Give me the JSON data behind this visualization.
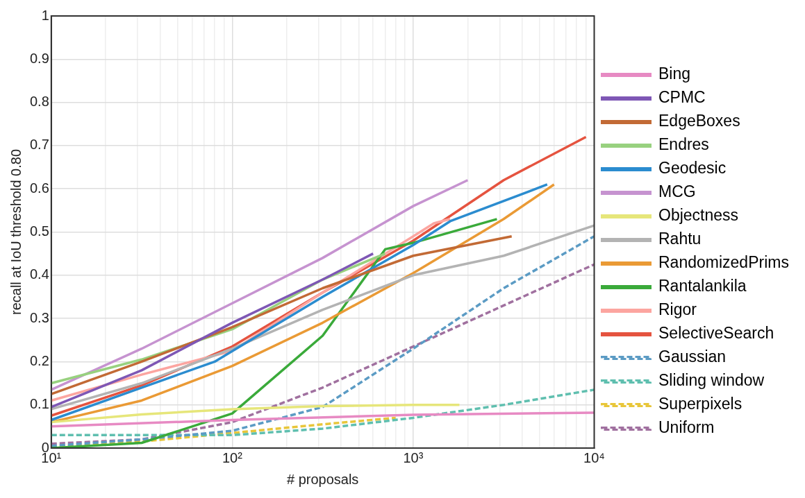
{
  "chart_data": {
    "type": "line",
    "xlabel": "# proposals",
    "ylabel": "recall at IoU threshold 0.80",
    "log": "x",
    "grid": true,
    "legend": "right",
    "marker": "none",
    "xlim": [
      10,
      10000
    ],
    "xticks": [
      {
        "value": 10,
        "label": "10¹"
      },
      {
        "value": 20,
        "label": null
      },
      {
        "value": 30,
        "label": null
      },
      {
        "value": 40,
        "label": null
      },
      {
        "value": 50,
        "label": null
      },
      {
        "value": 60,
        "label": null
      },
      {
        "value": 70,
        "label": null
      },
      {
        "value": 80,
        "label": null
      },
      {
        "value": 90,
        "label": null
      },
      {
        "value": 100,
        "label": "10²"
      },
      {
        "value": 200,
        "label": null
      },
      {
        "value": 300,
        "label": null
      },
      {
        "value": 400,
        "label": null
      },
      {
        "value": 500,
        "label": null
      },
      {
        "value": 600,
        "label": null
      },
      {
        "value": 700,
        "label": null
      },
      {
        "value": 800,
        "label": null
      },
      {
        "value": 900,
        "label": null
      },
      {
        "value": 1000,
        "label": "10³"
      },
      {
        "value": 2000,
        "label": null
      },
      {
        "value": 3000,
        "label": null
      },
      {
        "value": 4000,
        "label": null
      },
      {
        "value": 5000,
        "label": null
      },
      {
        "value": 6000,
        "label": null
      },
      {
        "value": 7000,
        "label": null
      },
      {
        "value": 8000,
        "label": null
      },
      {
        "value": 9000,
        "label": null
      },
      {
        "value": 10000,
        "label": "10⁴"
      }
    ],
    "ylim": [
      0,
      1
    ],
    "yticks": [
      0,
      0.1,
      0.2,
      0.3,
      0.4,
      0.5,
      0.6,
      0.7,
      0.8,
      0.9,
      1
    ],
    "series": [
      {
        "name": "Bing",
        "color": "#e78ac3",
        "line_style": "solid",
        "x": [
          10,
          100,
          1000,
          10000
        ],
        "values": [
          0.05,
          0.065,
          0.077,
          0.082
        ]
      },
      {
        "name": "CPMC",
        "color": "#7e57b5",
        "line_style": "solid",
        "x": [
          10,
          31.6,
          100,
          316,
          600
        ],
        "values": [
          0.095,
          0.18,
          0.29,
          0.39,
          0.45
        ]
      },
      {
        "name": "EdgeBoxes",
        "color": "#c26a35",
        "line_style": "solid",
        "x": [
          10,
          31.6,
          100,
          316,
          1000,
          3500
        ],
        "values": [
          0.125,
          0.2,
          0.28,
          0.37,
          0.445,
          0.49
        ]
      },
      {
        "name": "Endres",
        "color": "#98d17f",
        "line_style": "solid",
        "x": [
          10,
          31.6,
          100,
          316,
          700
        ],
        "values": [
          0.15,
          0.205,
          0.275,
          0.39,
          0.45
        ]
      },
      {
        "name": "Geodesic",
        "color": "#2b8ccf",
        "line_style": "solid",
        "x": [
          10,
          31.6,
          80,
          316,
          1000,
          1600,
          5500
        ],
        "values": [
          0.065,
          0.14,
          0.2,
          0.35,
          0.47,
          0.525,
          0.61
        ]
      },
      {
        "name": "MCG",
        "color": "#c693d0",
        "line_style": "solid",
        "x": [
          10,
          31.6,
          100,
          316,
          1000,
          2000
        ],
        "values": [
          0.135,
          0.23,
          0.335,
          0.44,
          0.56,
          0.62
        ]
      },
      {
        "name": "Objectness",
        "color": "#e6e67a",
        "line_style": "solid",
        "x": [
          10,
          31.6,
          100,
          316,
          1000,
          1800
        ],
        "values": [
          0.06,
          0.078,
          0.09,
          0.097,
          0.1,
          0.1
        ]
      },
      {
        "name": "Rahtu",
        "color": "#b3b3b3",
        "line_style": "solid",
        "x": [
          10,
          31.6,
          100,
          316,
          1000,
          3162,
          10000
        ],
        "values": [
          0.09,
          0.15,
          0.23,
          0.32,
          0.4,
          0.445,
          0.515
        ]
      },
      {
        "name": "RandomizedPrims",
        "color": "#ea9a35",
        "line_style": "solid",
        "x": [
          10,
          31.6,
          100,
          316,
          1000,
          3162,
          6000
        ],
        "values": [
          0.06,
          0.11,
          0.19,
          0.29,
          0.405,
          0.53,
          0.61
        ]
      },
      {
        "name": "Rantalankila",
        "color": "#3aaa3a",
        "line_style": "solid",
        "x": [
          10,
          31.6,
          100,
          316,
          700,
          1000,
          2900
        ],
        "values": [
          0,
          0.012,
          0.08,
          0.26,
          0.46,
          0.475,
          0.53
        ]
      },
      {
        "name": "Rigor",
        "color": "#fca5a0",
        "line_style": "solid",
        "x": [
          10,
          31.6,
          100,
          316,
          1000,
          1300,
          1600
        ],
        "values": [
          0.11,
          0.17,
          0.225,
          0.36,
          0.49,
          0.52,
          0.53
        ]
      },
      {
        "name": "SelectiveSearch",
        "color": "#e5533f",
        "line_style": "solid",
        "x": [
          10,
          31.6,
          100,
          316,
          1000,
          3162,
          9000
        ],
        "values": [
          0.075,
          0.145,
          0.235,
          0.36,
          0.48,
          0.62,
          0.72
        ]
      },
      {
        "name": "Gaussian",
        "color": "#5b9bc4",
        "line_style": "dashed",
        "x": [
          10,
          31.6,
          100,
          316,
          1000,
          3162,
          10000
        ],
        "values": [
          0.005,
          0.02,
          0.04,
          0.095,
          0.23,
          0.37,
          0.49
        ]
      },
      {
        "name": "Sliding window",
        "color": "#5fbfaf",
        "line_style": "dashed",
        "x": [
          10,
          31.6,
          100,
          316,
          1000,
          3162,
          10000
        ],
        "values": [
          0.03,
          0.03,
          0.03,
          0.045,
          0.07,
          0.1,
          0.135
        ]
      },
      {
        "name": "Superpixels",
        "color": "#e8c63a",
        "line_style": "dashed",
        "x": [
          10,
          31.6,
          100,
          316,
          800
        ],
        "values": [
          0.003,
          0.015,
          0.035,
          0.055,
          0.07
        ]
      },
      {
        "name": "Uniform",
        "color": "#a0709f",
        "line_style": "dashed",
        "x": [
          10,
          31.6,
          100,
          316,
          1000,
          3162,
          10000
        ],
        "values": [
          0.01,
          0.02,
          0.06,
          0.14,
          0.235,
          0.33,
          0.425
        ]
      }
    ]
  }
}
